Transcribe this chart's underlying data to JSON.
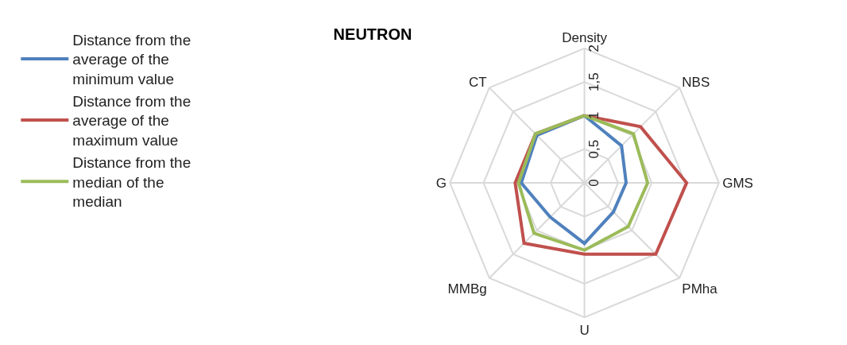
{
  "chart_data": {
    "type": "radar",
    "title": "NEUTRON",
    "categories": [
      "Density",
      "NBS",
      "GMS",
      "PMha",
      "U",
      "MMBg",
      "G",
      "CT"
    ],
    "series": [
      {
        "name": "Distance from the average of the minimum value",
        "color": "#4f81bd",
        "values": [
          1.0,
          0.78,
          0.62,
          0.61,
          0.9,
          0.72,
          0.94,
          1.0
        ]
      },
      {
        "name": "Distance from the average of the maximum value",
        "color": "#c0504d",
        "values": [
          1.0,
          1.18,
          1.52,
          1.5,
          1.06,
          1.27,
          1.03,
          1.03
        ]
      },
      {
        "name": "Distance from the median of the median",
        "color": "#9bbb59",
        "values": [
          1.0,
          1.03,
          0.94,
          0.92,
          1.0,
          1.06,
          0.98,
          1.03
        ]
      }
    ],
    "ylim": [
      0,
      2
    ],
    "yticks": [
      0,
      {
        "value": 0.5,
        "label": "0,5"
      },
      1,
      {
        "value": 1.5,
        "label": "1,5"
      },
      2
    ],
    "grid": true,
    "legend": "left",
    "line_style": "solid"
  }
}
